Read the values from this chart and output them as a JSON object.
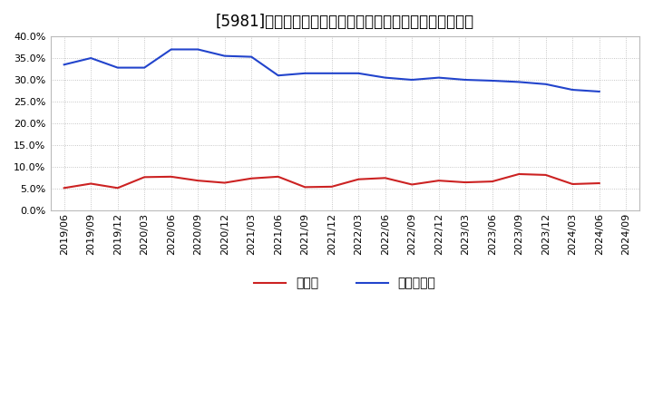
{
  "title": "[5981]　現預金、有利子負債の総資産に対する比率の推移",
  "x_labels": [
    "2019/06",
    "2019/09",
    "2019/12",
    "2020/03",
    "2020/06",
    "2020/09",
    "2020/12",
    "2021/03",
    "2021/06",
    "2021/09",
    "2021/12",
    "2022/03",
    "2022/06",
    "2022/09",
    "2022/12",
    "2023/03",
    "2023/06",
    "2023/09",
    "2023/12",
    "2024/03",
    "2024/06",
    "2024/09"
  ],
  "cash_values": [
    0.051,
    0.061,
    0.051,
    0.076,
    0.077,
    0.068,
    0.063,
    0.073,
    0.077,
    0.053,
    0.054,
    0.071,
    0.074,
    0.059,
    0.068,
    0.064,
    0.066,
    0.083,
    0.081,
    0.06,
    0.062,
    null
  ],
  "debt_values": [
    0.335,
    0.35,
    0.328,
    0.328,
    0.37,
    0.37,
    0.355,
    0.353,
    0.31,
    0.315,
    0.315,
    0.315,
    0.305,
    0.3,
    0.305,
    0.3,
    0.298,
    0.295,
    0.29,
    0.277,
    0.273,
    null
  ],
  "cash_color": "#cc2222",
  "debt_color": "#2244cc",
  "ylim": [
    0.0,
    0.4
  ],
  "yticks": [
    0.0,
    0.05,
    0.1,
    0.15,
    0.2,
    0.25,
    0.3,
    0.35,
    0.4
  ],
  "legend_cash": "現預金",
  "legend_debt": "有利子負債",
  "bg_color": "#ffffff",
  "plot_bg_color": "#ffffff",
  "grid_color": "#999999",
  "title_fontsize": 12,
  "tick_fontsize": 8,
  "legend_fontsize": 10
}
